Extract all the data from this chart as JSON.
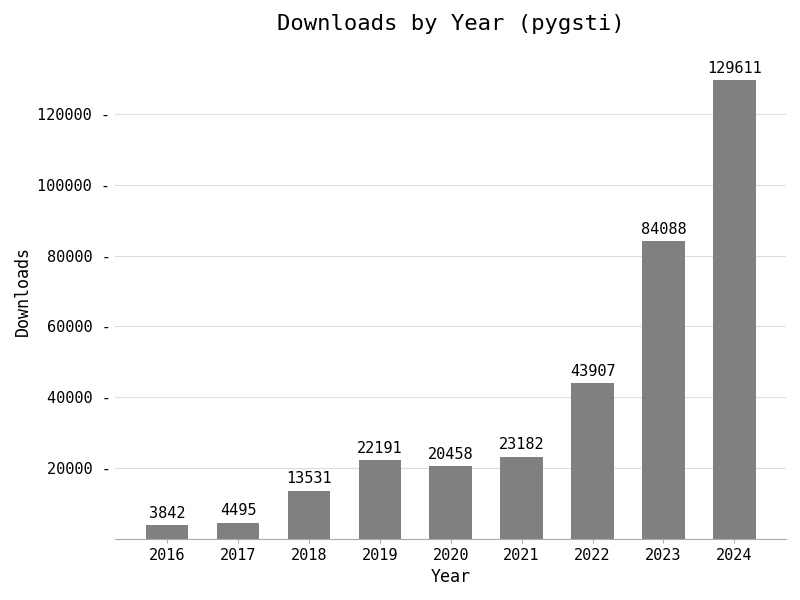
{
  "years": [
    "2016",
    "2017",
    "2018",
    "2019",
    "2020",
    "2021",
    "2022",
    "2023",
    "2024"
  ],
  "downloads": [
    3842,
    4495,
    13531,
    22191,
    20458,
    23182,
    43907,
    84088,
    129611
  ],
  "bar_color": "#808080",
  "title": "Downloads by Year (pygsti)",
  "xlabel": "Year",
  "ylabel": "Downloads",
  "ylim": [
    0,
    140000
  ],
  "yticks": [
    20000,
    40000,
    60000,
    80000,
    100000,
    120000
  ],
  "title_fontsize": 16,
  "label_fontsize": 12,
  "tick_fontsize": 11,
  "annotation_fontsize": 11,
  "background_color": "#ffffff",
  "grid_color": "#dddddd"
}
